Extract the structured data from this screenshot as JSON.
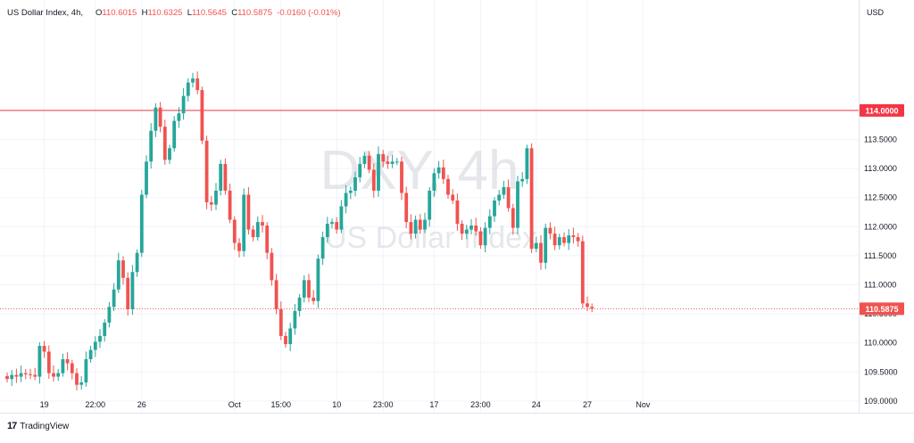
{
  "header": {
    "symbol_title": "US Dollar Index, 4h,",
    "open_label": "O",
    "open": "110.6015",
    "high_label": "H",
    "high": "110.6325",
    "low_label": "L",
    "low": "110.5645",
    "close_label": "C",
    "close": "110.5875",
    "change": "-0.0160 (-0.01%)"
  },
  "watermark": {
    "ticker": "DXY, 4h",
    "name": "US Dollar Index"
  },
  "footer": {
    "brand": "TradingView"
  },
  "colors": {
    "up": "#26a69a",
    "down": "#ef5350",
    "hline": "#f23645",
    "grid": "#f0f3fa",
    "axis_text": "#131722",
    "watermark": "#d1d4dc"
  },
  "chart_data": {
    "type": "candlestick",
    "currency": "USD",
    "ylim": [
      108.8,
      115.9
    ],
    "y_ticks": [
      "109.0000",
      "109.5000",
      "110.0000",
      "110.5000",
      "111.0000",
      "111.5000",
      "112.0000",
      "112.5000",
      "113.0000",
      "113.5000",
      "114.0000"
    ],
    "x_ticks": [
      {
        "label": "19",
        "index": 8
      },
      {
        "label": "22:00",
        "index": 19
      },
      {
        "label": "26",
        "index": 29
      },
      {
        "label": "Oct",
        "index": 49
      },
      {
        "label": "15:00",
        "index": 59
      },
      {
        "label": "10",
        "index": 71
      },
      {
        "label": "23:00",
        "index": 81
      },
      {
        "label": "17",
        "index": 92
      },
      {
        "label": "23:00",
        "index": 102
      },
      {
        "label": "24",
        "index": 114
      },
      {
        "label": "27",
        "index": 125
      },
      {
        "label": "Nov",
        "index": 137
      }
    ],
    "horizontal_line": {
      "price": 114.0,
      "label": "114.0000"
    },
    "last_price": {
      "price": 110.5875,
      "label": "110.5875"
    },
    "closes": [
      109.38,
      109.45,
      109.42,
      109.48,
      109.46,
      109.45,
      109.42,
      109.95,
      109.85,
      109.48,
      109.42,
      109.48,
      109.72,
      109.65,
      109.48,
      109.28,
      109.32,
      109.72,
      109.88,
      110.02,
      110.12,
      110.35,
      110.62,
      110.92,
      111.42,
      111.12,
      110.58,
      111.22,
      111.55,
      112.55,
      113.12,
      113.65,
      114.05,
      113.72,
      113.15,
      113.35,
      113.82,
      113.95,
      114.25,
      114.48,
      114.55,
      114.35,
      113.48,
      112.42,
      112.38,
      112.62,
      113.08,
      112.62,
      112.12,
      111.72,
      111.58,
      112.55,
      111.95,
      111.82,
      112.08,
      112.02,
      111.55,
      111.08,
      110.58,
      110.12,
      109.98,
      110.25,
      110.55,
      110.78,
      111.08,
      110.78,
      110.72,
      111.45,
      111.82,
      112.05,
      112.08,
      111.95,
      112.35,
      112.58,
      112.62,
      112.85,
      113.08,
      113.22,
      112.98,
      112.62,
      113.25,
      113.12,
      113.08,
      113.12,
      113.12,
      112.58,
      112.08,
      111.88,
      112.12,
      111.95,
      112.12,
      112.62,
      112.92,
      113.02,
      112.82,
      112.55,
      112.45,
      112.05,
      111.88,
      111.95,
      112.02,
      111.92,
      111.68,
      111.98,
      112.18,
      112.45,
      112.55,
      112.68,
      112.32,
      111.98,
      112.78,
      112.82,
      113.35,
      111.62,
      111.72,
      111.38,
      111.98,
      111.88,
      111.68,
      111.82,
      111.72,
      111.85,
      111.82,
      111.75,
      110.68,
      110.62,
      110.59
    ]
  }
}
